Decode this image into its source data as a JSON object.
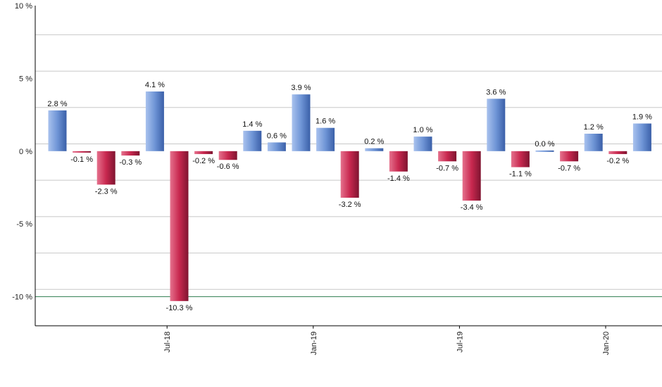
{
  "chart_data": {
    "type": "bar",
    "title": "",
    "xlabel": "",
    "ylabel": "",
    "ylim": [
      -12,
      10
    ],
    "y_ticks": [
      10,
      5,
      0,
      -5,
      -10
    ],
    "y_tick_labels": [
      "10 %",
      "5 %",
      "0 %",
      "-5 %",
      "-10 %"
    ],
    "grid": true,
    "reference_line": -10,
    "colors": {
      "positive": "#6f95d6",
      "negative": "#c8284f",
      "grid": "#c8c8c8",
      "reference_line": "#2e7d4f",
      "axis": "#000000"
    },
    "x_tick_labels": [
      {
        "label": "Jul-18",
        "index": 4.5
      },
      {
        "label": "Jan-19",
        "index": 10.5
      },
      {
        "label": "Jul-19",
        "index": 16.5
      },
      {
        "label": "Jan-20",
        "index": 22.5
      }
    ],
    "values": [
      2.8,
      -0.1,
      -2.3,
      -0.3,
      4.1,
      -10.3,
      -0.2,
      -0.6,
      1.4,
      0.6,
      3.9,
      1.6,
      -3.2,
      0.2,
      -1.4,
      1.0,
      -0.7,
      -3.4,
      3.6,
      -1.1,
      0.0,
      -0.7,
      1.2,
      -0.2,
      1.9
    ],
    "data_labels": [
      "2.8 %",
      "-0.1 %",
      "-2.3 %",
      "-0.3 %",
      "4.1 %",
      "-10.3 %",
      "-0.2 %",
      "-0.6 %",
      "1.4 %",
      "0.6 %",
      "3.9 %",
      "1.6 %",
      "-3.2 %",
      "0.2 %",
      "-1.4 %",
      "1.0 %",
      "-0.7 %",
      "-3.4 %",
      "3.6 %",
      "-1.1 %",
      "0.0 %",
      "-0.7 %",
      "1.2 %",
      "-0.2 %",
      "1.9 %"
    ]
  }
}
